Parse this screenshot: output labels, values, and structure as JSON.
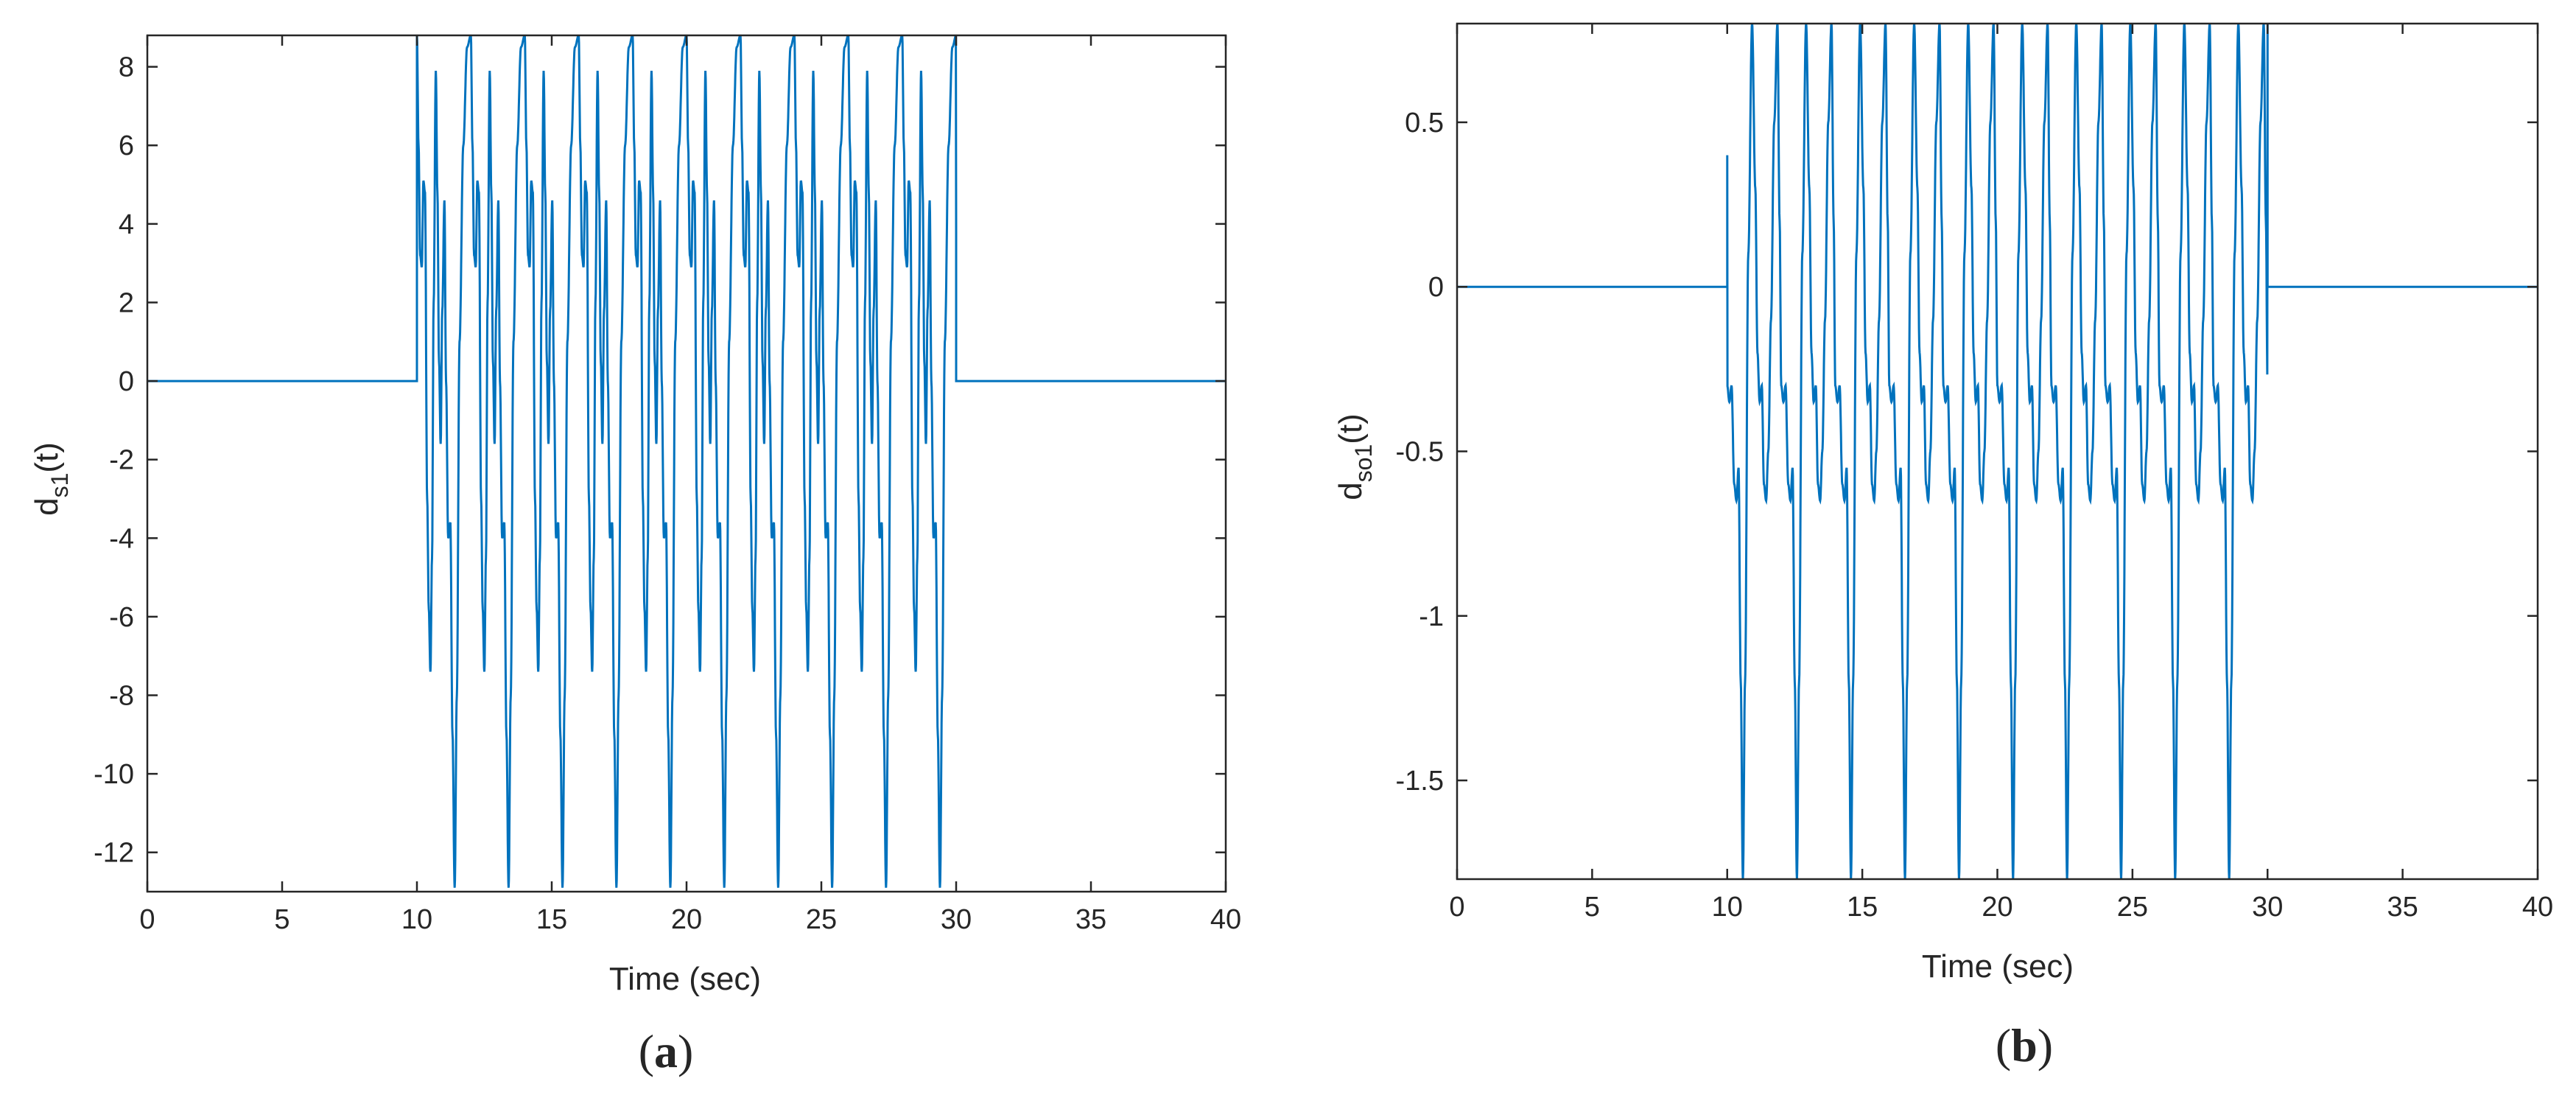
{
  "colors": {
    "line": "#0072BD",
    "axis": "#262626",
    "background": "#ffffff"
  },
  "chart_data": [
    {
      "type": "line",
      "panel_label": {
        "open": "(",
        "letter": "a",
        "close": ")"
      },
      "xlabel": "Time (sec)",
      "ylabel": {
        "main": "d",
        "sub": "s1",
        "suffix": "(t)"
      },
      "xlim": [
        0,
        40
      ],
      "ylim": [
        -13,
        8.8
      ],
      "xticks": [
        0,
        5,
        10,
        15,
        20,
        25,
        30,
        35,
        40
      ],
      "yticks": [
        -12,
        -10,
        -8,
        -6,
        -4,
        -2,
        0,
        2,
        4,
        6,
        8
      ],
      "grid": false,
      "active_interval": [
        10,
        30
      ],
      "signal_description": "Zero for t<10 and t>30; periodic oscillation (period ~2 s) between 10 and 30 s",
      "period": 2.0,
      "cycle_shape": [
        [
          0.0,
          8.8
        ],
        [
          0.06,
          6.0
        ],
        [
          0.12,
          3.2
        ],
        [
          0.18,
          2.9
        ],
        [
          0.24,
          5.1
        ],
        [
          0.3,
          4.8
        ],
        [
          0.38,
          -3.0
        ],
        [
          0.44,
          -5.8
        ],
        [
          0.5,
          -7.4
        ],
        [
          0.56,
          -4.5
        ],
        [
          0.62,
          2.0
        ],
        [
          0.7,
          7.9
        ],
        [
          0.76,
          4.8
        ],
        [
          0.82,
          0.5
        ],
        [
          0.88,
          -1.6
        ],
        [
          0.94,
          1.8
        ],
        [
          1.02,
          4.6
        ],
        [
          1.08,
          0.0
        ],
        [
          1.16,
          -4.0
        ],
        [
          1.24,
          -3.6
        ],
        [
          1.32,
          -9.0
        ],
        [
          1.4,
          -12.9
        ],
        [
          1.48,
          -8.0
        ],
        [
          1.58,
          1.0
        ],
        [
          1.72,
          6.0
        ],
        [
          1.86,
          8.5
        ],
        [
          2.0,
          8.8
        ]
      ],
      "start_value": 8.8,
      "end_spike": 3.8
    },
    {
      "type": "line",
      "panel_label": {
        "open": "(",
        "letter": "b",
        "close": ")"
      },
      "xlabel": "Time (sec)",
      "ylabel": {
        "main": "d",
        "sub": "so1",
        "suffix": "(t)"
      },
      "xlim": [
        0,
        40
      ],
      "ylim": [
        -1.8,
        0.8
      ],
      "xticks": [
        0,
        5,
        10,
        15,
        20,
        25,
        30,
        35,
        40
      ],
      "yticks": [
        -1.5,
        -1,
        -0.5,
        0,
        0.5
      ],
      "ytick_labels": [
        "-1.5",
        "-1",
        "-0.5",
        "0",
        "0.5"
      ],
      "grid": false,
      "active_interval": [
        10,
        30
      ],
      "signal_description": "Zero for t<10 and t>30; clipped periodic oscillation (period ~2 s) between 10 and 30 s",
      "period": 2.0,
      "cycle_shape": [
        [
          0.0,
          -0.3
        ],
        [
          0.08,
          -0.35
        ],
        [
          0.16,
          -0.3
        ],
        [
          0.26,
          -0.6
        ],
        [
          0.34,
          -0.65
        ],
        [
          0.42,
          -0.55
        ],
        [
          0.5,
          -1.2
        ],
        [
          0.58,
          -1.8
        ],
        [
          0.66,
          -1.2
        ],
        [
          0.78,
          0.1
        ],
        [
          0.92,
          0.8
        ],
        [
          1.04,
          0.3
        ],
        [
          1.12,
          -0.2
        ],
        [
          1.2,
          -0.35
        ],
        [
          1.28,
          -0.3
        ],
        [
          1.36,
          -0.6
        ],
        [
          1.44,
          -0.65
        ],
        [
          1.52,
          -0.5
        ],
        [
          1.62,
          -0.1
        ],
        [
          1.74,
          0.5
        ],
        [
          1.86,
          0.8
        ],
        [
          1.94,
          0.2
        ],
        [
          2.0,
          -0.3
        ]
      ],
      "start_spike": 0.4,
      "end_value": 0.8
    }
  ]
}
